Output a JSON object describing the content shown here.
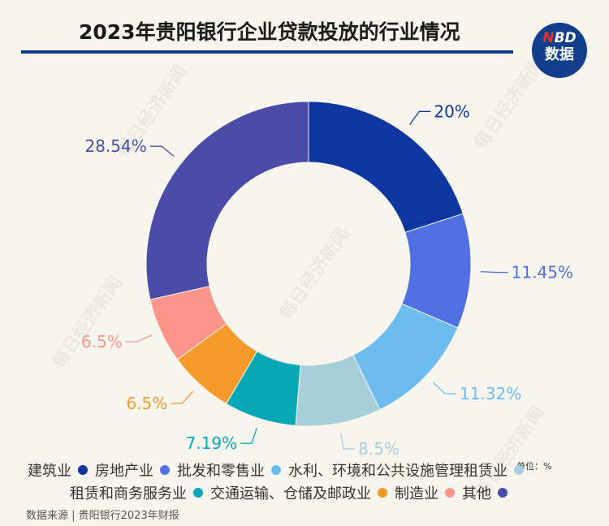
{
  "header": {
    "title": "2023年贵阳银行企业贷款投放的行业情况",
    "logo_line1_n": "N",
    "logo_line1_bd": "BD",
    "logo_line2": "数据"
  },
  "watermark": "每日经济新闻",
  "unit_note": "单位：%",
  "source": "数据来源 | 贵阳银行2023年财报",
  "colors": {
    "title_rule": "#123e8c",
    "background": "#f8f5ef"
  },
  "chart_data": {
    "type": "pie",
    "donut": true,
    "title": "2023年贵阳银行企业贷款投放的行业情况",
    "unit": "%",
    "slices": [
      {
        "name": "建筑业",
        "value": 20,
        "label": "20%",
        "color": "#0e36a0"
      },
      {
        "name": "房地产业",
        "value": 11.45,
        "label": "11.45%",
        "color": "#4f6fe3"
      },
      {
        "name": "批发和零售业",
        "value": 11.32,
        "label": "11.32%",
        "color": "#6cbcf2"
      },
      {
        "name": "水利、环境和公共设施管理租赁业",
        "value": 8.5,
        "label": "8.5%",
        "color": "#a7cfda"
      },
      {
        "name": "租赁和商务服务业",
        "value": 7.19,
        "label": "7.19%",
        "color": "#05a8b4"
      },
      {
        "name": "交通运输、仓储及邮政业",
        "value": 6.5,
        "label": "6.5%",
        "color": "#f79a29"
      },
      {
        "name": "制造业",
        "value": 6.5,
        "label": "6.5%",
        "color": "#fc9489"
      },
      {
        "name": "其他",
        "value": 28.54,
        "label": "28.54%",
        "color": "#4a4ca8"
      }
    ],
    "legend_placement": "bottom"
  }
}
